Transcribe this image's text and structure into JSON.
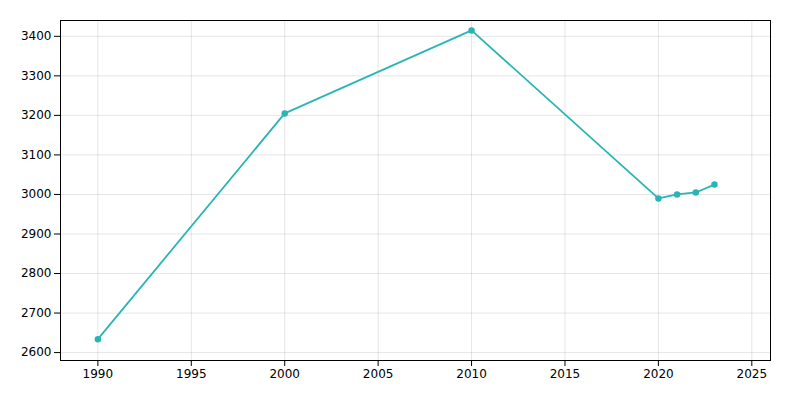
{
  "chart_data": {
    "type": "line",
    "x": [
      1990,
      2000,
      2010,
      2020,
      2021,
      2022,
      2023
    ],
    "values": [
      2634,
      3205,
      3415,
      2990,
      3000,
      3005,
      3025
    ],
    "color": "#2ab5b5",
    "marker": "circle",
    "xlim": [
      1988,
      2026
    ],
    "ylim": [
      2580,
      3440
    ],
    "xticks": [
      1990,
      1995,
      2000,
      2005,
      2010,
      2015,
      2020,
      2025
    ],
    "yticks": [
      2600,
      2700,
      2800,
      2900,
      3000,
      3100,
      3200,
      3300,
      3400
    ],
    "grid": true
  }
}
